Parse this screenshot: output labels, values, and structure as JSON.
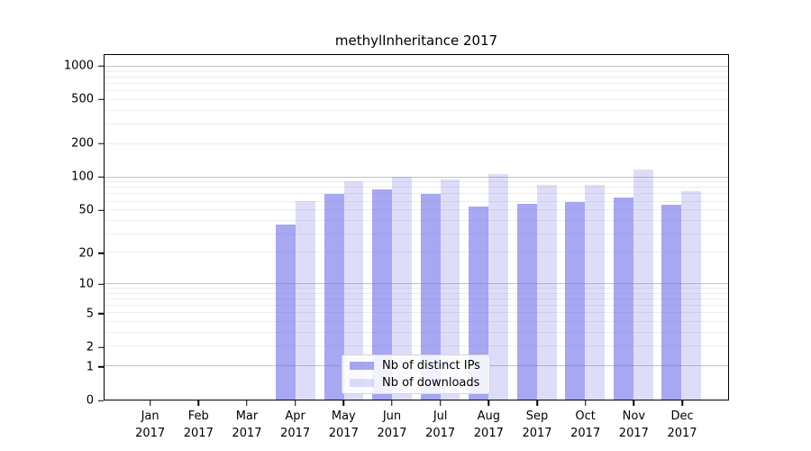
{
  "chart_data": {
    "type": "bar",
    "title": "methylInheritance 2017",
    "categories": [
      "Jan",
      "Feb",
      "Mar",
      "Apr",
      "May",
      "Jun",
      "Jul",
      "Aug",
      "Sep",
      "Oct",
      "Nov",
      "Dec"
    ],
    "category_year": "2017",
    "series": [
      {
        "name": "Nb of distinct IPs",
        "color": "rgba(113,113,234,0.62)",
        "values": [
          0,
          0,
          0,
          37,
          70,
          78,
          71,
          54,
          57,
          60,
          65,
          56
        ]
      },
      {
        "name": "Nb of downloads",
        "color": "rgba(113,113,234,0.24)",
        "values": [
          0,
          0,
          0,
          61,
          92,
          102,
          96,
          108,
          86,
          86,
          117,
          75
        ]
      }
    ],
    "yscale": "log10(1+y)",
    "yticks": [
      0,
      1,
      2,
      5,
      10,
      20,
      50,
      100,
      200,
      500,
      1000
    ],
    "ylim": [
      0,
      1280
    ],
    "grid": "horizontal major+minor",
    "legend_position": "lower center"
  },
  "colors": {
    "background": "#ffffff",
    "axis": "#000000",
    "grid_major": "#c3c3c3",
    "grid_minor": "#ededed",
    "bar_ip_effective": "#a7a7f2",
    "bar_dl_effective": "#dcdcfa"
  }
}
